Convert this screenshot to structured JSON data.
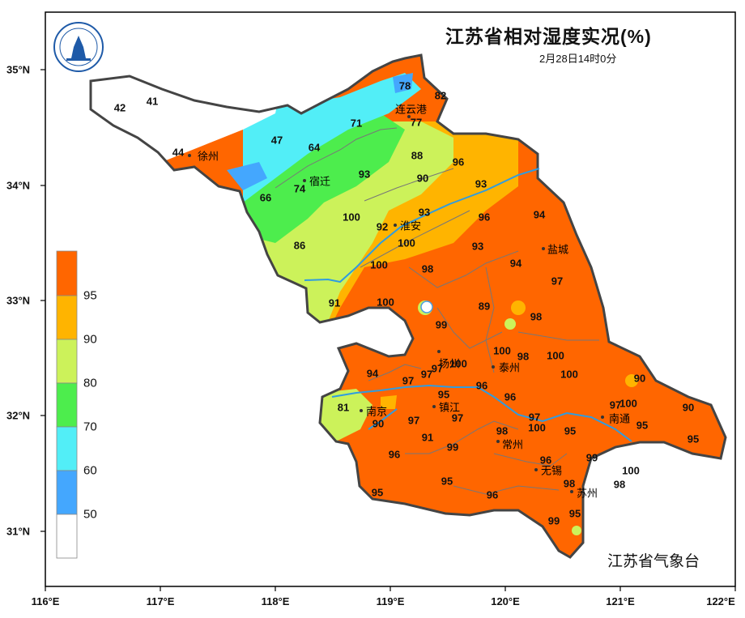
{
  "map": {
    "title": "江苏省相对湿度实况(%)",
    "subtitle": "2月28日14时0分",
    "agency": "江苏省气象台",
    "longitude_labels": [
      "116°E",
      "117°E",
      "118°E",
      "119°E",
      "120°E",
      "121°E",
      "122°E"
    ],
    "latitude_labels": [
      "35°N",
      "34°N",
      "33°N",
      "32°N",
      "31°N"
    ],
    "legend": {
      "labels": [
        "95",
        "90",
        "80",
        "70",
        "60",
        "50"
      ],
      "colors": [
        "#ff6600",
        "#ffb400",
        "#ccf25a",
        "#4ded4d",
        "#52eef7",
        "#44a7fe",
        "#ffffff"
      ]
    },
    "cities": [
      "徐州",
      "宿迁",
      "连云港",
      "淮安",
      "盐城",
      "扬州",
      "泰州",
      "南京",
      "镇江",
      "南通",
      "常州",
      "无锡",
      "苏州"
    ],
    "values": [
      "42",
      "41",
      "44",
      "47",
      "64",
      "71",
      "78",
      "82",
      "77",
      "88",
      "96",
      "66",
      "74",
      "93",
      "90",
      "93",
      "100",
      "92",
      "93",
      "96",
      "94",
      "86",
      "100",
      "100",
      "93",
      "94",
      "98",
      "97",
      "91",
      "100",
      "89",
      "99",
      "98",
      "100",
      "98",
      "100",
      "100",
      "94",
      "97",
      "95",
      "97",
      "100",
      "97",
      "96",
      "90",
      "81",
      "90",
      "97",
      "91",
      "97",
      "96",
      "97",
      "98",
      "100",
      "95",
      "100",
      "97",
      "95",
      "90",
      "95",
      "96",
      "99",
      "95",
      "96",
      "95",
      "96",
      "98",
      "99",
      "98",
      "100",
      "95",
      "99"
    ]
  }
}
